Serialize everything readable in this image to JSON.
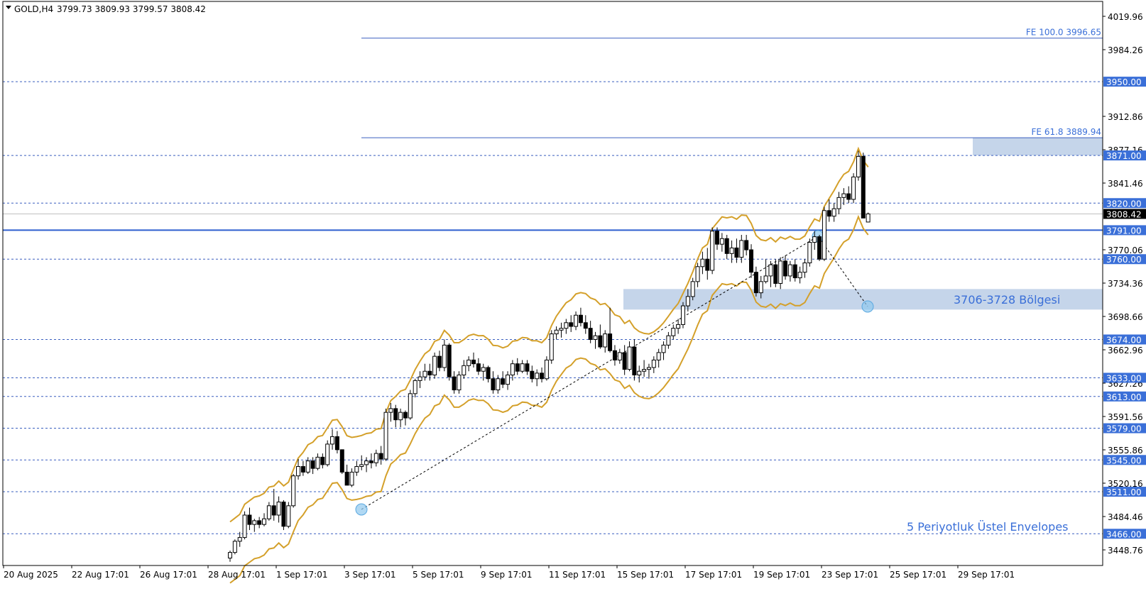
{
  "header": {
    "symbol_label": "GOLD,H4",
    "ohlc_text": "3799.73 3809.93 3799.57 3808.42"
  },
  "colors": {
    "background": "#ffffff",
    "candle": "#000000",
    "envelope": "#d4a02a",
    "level_line": "#3a5fbf",
    "support_line": "#2e5fcf",
    "zone_fill": "#c5d5ea",
    "text_blue": "#3a6fd8",
    "price_tag_bg": "#3a6fd8",
    "current_tag_bg": "#000000"
  },
  "annotations": {
    "zone_label": "3706-3728 Bölgesi",
    "envelope_label": "5 Periyotluk Üstel Envelopes",
    "fe100_label": "FE 100.0 3996.65",
    "fe618_label": "FE 61.8 3889.94"
  },
  "chart_data": {
    "type": "candlestick",
    "title": "",
    "ylim": [
      3430,
      4025
    ],
    "y_axis_ticks": [
      "4019.96",
      "3984.26",
      "3912.86",
      "3877.16",
      "3841.46",
      "3770.06",
      "3734.36",
      "3698.66",
      "3662.96",
      "3627.26",
      "3591.56",
      "3555.86",
      "3520.16",
      "3484.46",
      "3448.76"
    ],
    "x_axis_labels": [
      "20 Aug 2025",
      "22 Aug 17:01",
      "26 Aug 17:01",
      "28 Aug 17:01",
      "1 Sep 17:01",
      "3 Sep 17:01",
      "5 Sep 17:01",
      "9 Sep 17:01",
      "11 Sep 17:01",
      "15 Sep 17:01",
      "17 Sep 17:01",
      "19 Sep 17:01",
      "23 Sep 17:01",
      "25 Sep 17:01",
      "29 Sep 17:01"
    ],
    "horizontal_levels": [
      {
        "price": 3950.0,
        "label": "3950.00"
      },
      {
        "price": 3871.0,
        "label": "3871.00"
      },
      {
        "price": 3820.0,
        "label": "3820.00"
      },
      {
        "price": 3760.0,
        "label": "3760.00"
      },
      {
        "price": 3674.0,
        "label": "3674.00"
      },
      {
        "price": 3633.0,
        "label": "3633.00"
      },
      {
        "price": 3613.0,
        "label": "3613.00"
      },
      {
        "price": 3579.0,
        "label": "3579.00"
      },
      {
        "price": 3545.0,
        "label": "3545.00"
      },
      {
        "price": 3511.0,
        "label": "3511.00"
      },
      {
        "price": 3466.0,
        "label": "3466.00"
      }
    ],
    "support_level": {
      "price": 3791.0,
      "label": "3791.00"
    },
    "current_price": {
      "price": 3808.42,
      "label": "3808.42"
    },
    "fibonacci_expansion": [
      {
        "level": "100.0",
        "price": 3996.65
      },
      {
        "level": "61.8",
        "price": 3889.94
      }
    ],
    "zones": [
      {
        "low": 3706,
        "high": 3728
      },
      {
        "low": 3871,
        "high": 3889.94
      }
    ],
    "candles": [
      [
        3440,
        3448,
        3436,
        3446
      ],
      [
        3446,
        3460,
        3444,
        3458
      ],
      [
        3458,
        3468,
        3452,
        3462
      ],
      [
        3462,
        3490,
        3460,
        3486
      ],
      [
        3486,
        3494,
        3470,
        3476
      ],
      [
        3476,
        3482,
        3468,
        3480
      ],
      [
        3480,
        3484,
        3472,
        3476
      ],
      [
        3476,
        3488,
        3474,
        3482
      ],
      [
        3482,
        3500,
        3480,
        3496
      ],
      [
        3496,
        3514,
        3480,
        3486
      ],
      [
        3486,
        3506,
        3478,
        3500
      ],
      [
        3500,
        3502,
        3470,
        3474
      ],
      [
        3474,
        3500,
        3472,
        3496
      ],
      [
        3496,
        3530,
        3494,
        3528
      ],
      [
        3528,
        3546,
        3524,
        3538
      ],
      [
        3538,
        3544,
        3528,
        3532
      ],
      [
        3532,
        3548,
        3530,
        3544
      ],
      [
        3544,
        3548,
        3530,
        3536
      ],
      [
        3536,
        3552,
        3534,
        3548
      ],
      [
        3548,
        3552,
        3536,
        3540
      ],
      [
        3540,
        3566,
        3538,
        3562
      ],
      [
        3562,
        3578,
        3556,
        3570
      ],
      [
        3570,
        3576,
        3552,
        3556
      ],
      [
        3556,
        3552,
        3530,
        3532
      ],
      [
        3532,
        3540,
        3518,
        3518
      ],
      [
        3518,
        3536,
        3516,
        3532
      ],
      [
        3532,
        3544,
        3528,
        3538
      ],
      [
        3538,
        3550,
        3534,
        3540
      ],
      [
        3540,
        3548,
        3532,
        3544
      ],
      [
        3544,
        3552,
        3536,
        3542
      ],
      [
        3542,
        3556,
        3538,
        3552
      ],
      [
        3552,
        3560,
        3540,
        3546
      ],
      [
        3546,
        3600,
        3544,
        3596
      ],
      [
        3596,
        3606,
        3586,
        3600
      ],
      [
        3600,
        3604,
        3580,
        3588
      ],
      [
        3588,
        3600,
        3580,
        3596
      ],
      [
        3596,
        3598,
        3582,
        3590
      ],
      [
        3590,
        3620,
        3588,
        3616
      ],
      [
        3616,
        3632,
        3612,
        3630
      ],
      [
        3630,
        3640,
        3622,
        3634
      ],
      [
        3634,
        3648,
        3630,
        3640
      ],
      [
        3640,
        3648,
        3630,
        3636
      ],
      [
        3636,
        3660,
        3632,
        3656
      ],
      [
        3656,
        3662,
        3640,
        3644
      ],
      [
        3644,
        3674,
        3640,
        3668
      ],
      [
        3668,
        3670,
        3630,
        3634
      ],
      [
        3634,
        3640,
        3616,
        3620
      ],
      [
        3620,
        3640,
        3616,
        3636
      ],
      [
        3636,
        3652,
        3632,
        3646
      ],
      [
        3646,
        3656,
        3640,
        3652
      ],
      [
        3652,
        3660,
        3644,
        3648
      ],
      [
        3648,
        3654,
        3636,
        3640
      ],
      [
        3640,
        3648,
        3630,
        3644
      ],
      [
        3644,
        3646,
        3628,
        3632
      ],
      [
        3632,
        3640,
        3616,
        3620
      ],
      [
        3620,
        3636,
        3616,
        3632
      ],
      [
        3632,
        3640,
        3622,
        3626
      ],
      [
        3626,
        3640,
        3620,
        3636
      ],
      [
        3636,
        3652,
        3630,
        3648
      ],
      [
        3648,
        3654,
        3636,
        3640
      ],
      [
        3640,
        3652,
        3638,
        3648
      ],
      [
        3648,
        3652,
        3636,
        3640
      ],
      [
        3640,
        3646,
        3628,
        3632
      ],
      [
        3632,
        3642,
        3624,
        3638
      ],
      [
        3638,
        3644,
        3628,
        3632
      ],
      [
        3632,
        3656,
        3630,
        3652
      ],
      [
        3652,
        3684,
        3648,
        3680
      ],
      [
        3680,
        3688,
        3674,
        3684
      ],
      [
        3684,
        3692,
        3676,
        3686
      ],
      [
        3686,
        3696,
        3680,
        3692
      ],
      [
        3692,
        3700,
        3682,
        3688
      ],
      [
        3688,
        3704,
        3684,
        3700
      ],
      [
        3700,
        3708,
        3688,
        3692
      ],
      [
        3692,
        3700,
        3680,
        3686
      ],
      [
        3686,
        3694,
        3670,
        3674
      ],
      [
        3674,
        3682,
        3664,
        3678
      ],
      [
        3678,
        3690,
        3664,
        3666
      ],
      [
        3666,
        3684,
        3660,
        3680
      ],
      [
        3680,
        3708,
        3660,
        3662
      ],
      [
        3662,
        3668,
        3646,
        3652
      ],
      [
        3652,
        3664,
        3648,
        3660
      ],
      [
        3660,
        3668,
        3636,
        3642
      ],
      [
        3642,
        3672,
        3640,
        3666
      ],
      [
        3666,
        3674,
        3630,
        3636
      ],
      [
        3636,
        3646,
        3628,
        3640
      ],
      [
        3640,
        3652,
        3634,
        3642
      ],
      [
        3642,
        3648,
        3632,
        3644
      ],
      [
        3644,
        3656,
        3638,
        3652
      ],
      [
        3652,
        3664,
        3644,
        3660
      ],
      [
        3660,
        3672,
        3652,
        3668
      ],
      [
        3668,
        3682,
        3664,
        3678
      ],
      [
        3678,
        3690,
        3674,
        3686
      ],
      [
        3686,
        3696,
        3680,
        3690
      ],
      [
        3690,
        3714,
        3686,
        3710
      ],
      [
        3710,
        3728,
        3704,
        3720
      ],
      [
        3720,
        3740,
        3716,
        3736
      ],
      [
        3736,
        3756,
        3730,
        3752
      ],
      [
        3752,
        3768,
        3744,
        3760
      ],
      [
        3760,
        3772,
        3738,
        3748
      ],
      [
        3748,
        3794,
        3744,
        3790
      ],
      [
        3790,
        3794,
        3770,
        3776
      ],
      [
        3776,
        3788,
        3768,
        3782
      ],
      [
        3782,
        3786,
        3760,
        3766
      ],
      [
        3766,
        3780,
        3756,
        3772
      ],
      [
        3772,
        3782,
        3756,
        3762
      ],
      [
        3762,
        3786,
        3756,
        3780
      ],
      [
        3780,
        3786,
        3764,
        3770
      ],
      [
        3770,
        3776,
        3740,
        3746
      ],
      [
        3746,
        3752,
        3720,
        3724
      ],
      [
        3724,
        3742,
        3718,
        3736
      ],
      [
        3736,
        3760,
        3734,
        3742
      ],
      [
        3742,
        3758,
        3730,
        3754
      ],
      [
        3754,
        3760,
        3730,
        3734
      ],
      [
        3734,
        3762,
        3728,
        3758
      ],
      [
        3758,
        3764,
        3738,
        3742
      ],
      [
        3742,
        3758,
        3736,
        3754
      ],
      [
        3754,
        3760,
        3736,
        3740
      ],
      [
        3740,
        3752,
        3734,
        3746
      ],
      [
        3746,
        3760,
        3740,
        3756
      ],
      [
        3756,
        3782,
        3752,
        3778
      ],
      [
        3778,
        3790,
        3770,
        3784
      ],
      [
        3784,
        3786,
        3758,
        3760
      ],
      [
        3760,
        3816,
        3758,
        3812
      ],
      [
        3812,
        3824,
        3800,
        3806
      ],
      [
        3806,
        3820,
        3800,
        3814
      ],
      [
        3814,
        3832,
        3808,
        3826
      ],
      [
        3826,
        3836,
        3818,
        3830
      ],
      [
        3830,
        3838,
        3820,
        3824
      ],
      [
        3824,
        3852,
        3820,
        3848
      ],
      [
        3848,
        3876,
        3844,
        3870
      ],
      [
        3870,
        3874,
        3806,
        3804
      ],
      [
        3799.73,
        3809.93,
        3799.57,
        3808.42
      ]
    ]
  }
}
